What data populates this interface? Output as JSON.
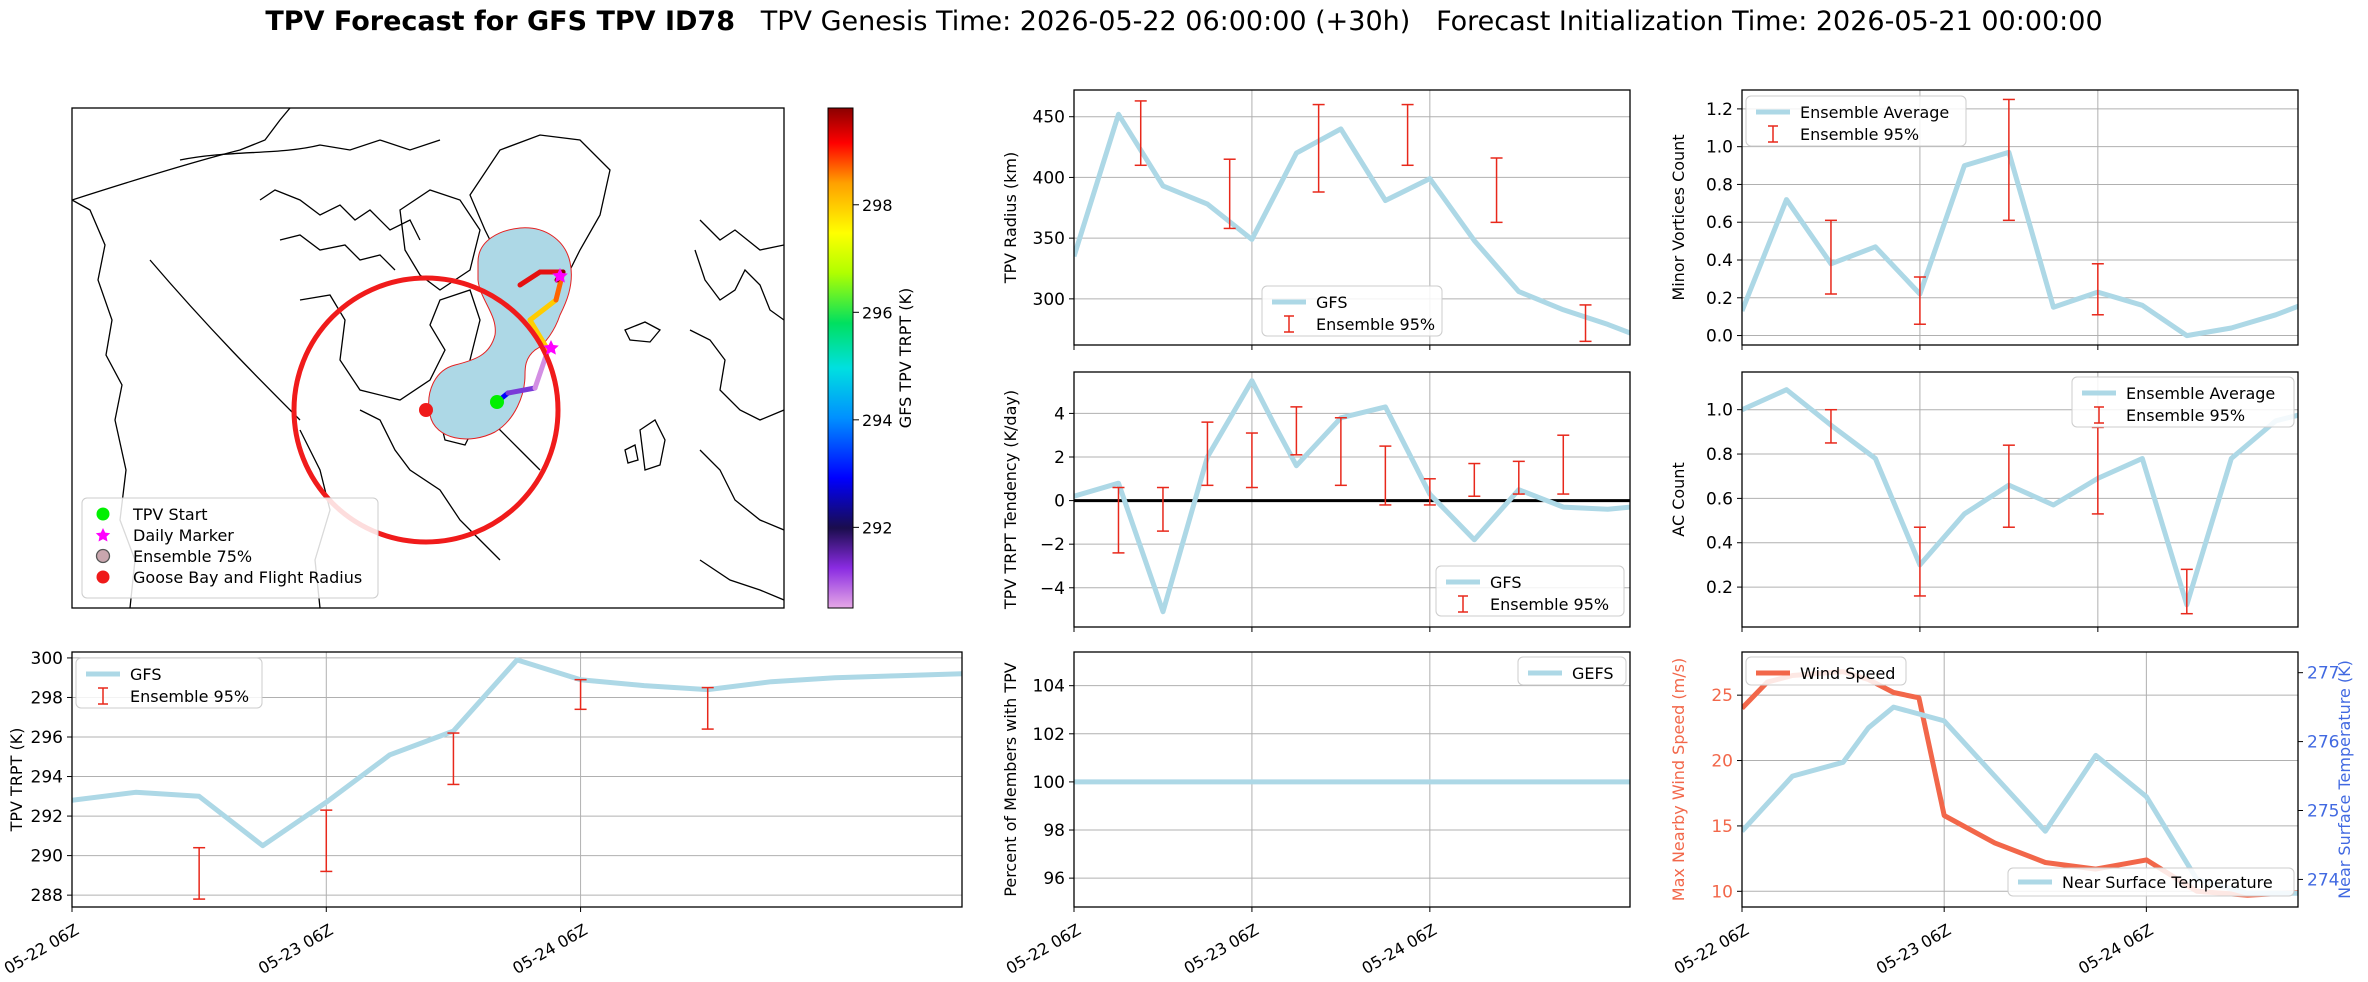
{
  "title": {
    "bold": "TPV Forecast for GFS TPV ID78",
    "genesis": "TPV Genesis Time: 2026-05-22 06:00:00 (+30h)",
    "init": "Forecast Initialization Time: 2026-05-21 00:00:00"
  },
  "colors": {
    "gfs_line": "#add8e6",
    "ensemble_bar": "#e8281b",
    "zero_line": "#000000",
    "wind_line": "#f2674a",
    "wind_axis": "#f2674a",
    "temp_axis": "#4169e1",
    "map_track_fill": "#add8e6",
    "flight_radius": "#f01b1b",
    "tpv_start": "#00f000",
    "daily_marker": "#ff00ff",
    "goose_bay": "#ef1a1a"
  },
  "chart_data": [
    {
      "id": "map",
      "type": "map",
      "legend_placement": "lower-left",
      "legend": [
        {
          "label": "TPV Start",
          "marker": "green-dot-icon"
        },
        {
          "label": "Daily Marker",
          "marker": "magenta-star-icon"
        },
        {
          "label": "Ensemble 75%",
          "marker": "blue-grey-circle-icon"
        },
        {
          "label": "Goose Bay and Flight Radius",
          "marker": "red-dot-icon"
        }
      ],
      "colorbar": {
        "label": "GFS TPV TRPT (K)",
        "range": [
          290.5,
          299.8
        ],
        "ticks": [
          292,
          294,
          296,
          298
        ],
        "tick_labels": [
          "292",
          "294",
          "296",
          "298"
        ]
      }
    },
    {
      "id": "radius",
      "type": "line",
      "ylabel": "TPV Radius (km)",
      "xlim": [
        0,
        75
      ],
      "ylim": [
        262,
        472
      ],
      "yticks": [
        300,
        350,
        400,
        450
      ],
      "ytick_labels": [
        "300",
        "350",
        "400",
        "450"
      ],
      "xticks": [
        0,
        24,
        48
      ],
      "xtick_labels": [
        "05-22 06Z",
        "05-23 06Z",
        "05-24 06Z"
      ],
      "grid": true,
      "legend_placement": "lower-center",
      "series": [
        {
          "name": "GFS",
          "x": [
            0,
            6,
            12,
            18,
            24,
            30,
            36,
            42,
            48,
            54,
            60,
            66,
            72,
            78
          ],
          "values": [
            335,
            452,
            393,
            378,
            349,
            420,
            440,
            381,
            399,
            348,
            306,
            291,
            279,
            265
          ]
        }
      ],
      "errorbars": {
        "name": "Ensemble 95%",
        "x": [
          -3,
          9,
          21,
          33,
          45,
          57,
          69
        ],
        "low": [
          267,
          410,
          358,
          388,
          410,
          363,
          265
        ],
        "high": [
          330,
          463,
          415,
          460,
          460,
          416,
          295
        ]
      }
    },
    {
      "id": "minor",
      "type": "line",
      "ylabel": "Minor Vortices Count",
      "xlim": [
        0,
        75
      ],
      "ylim": [
        -0.05,
        1.3
      ],
      "yticks": [
        0.0,
        0.2,
        0.4,
        0.6,
        0.8,
        1.0,
        1.2
      ],
      "ytick_labels": [
        "0.0",
        "0.2",
        "0.4",
        "0.6",
        "0.8",
        "1.0",
        "1.2"
      ],
      "xticks": [
        0,
        24,
        48
      ],
      "xtick_labels": [
        "05-22 06Z",
        "05-23 06Z",
        "05-24 06Z"
      ],
      "grid": true,
      "legend_placement": "upper-left",
      "series": [
        {
          "name": "Ensemble Average",
          "x": [
            0,
            6,
            12,
            18,
            24,
            30,
            36,
            42,
            48,
            54,
            60,
            66,
            72,
            78
          ],
          "values": [
            0.13,
            0.72,
            0.38,
            0.47,
            0.22,
            0.9,
            0.97,
            0.15,
            0.23,
            0.16,
            0.0,
            0.04,
            0.11,
            0.2
          ]
        }
      ],
      "errorbars": {
        "name": "Ensemble 95%",
        "x": [
          12,
          24,
          36,
          48
        ],
        "low": [
          0.22,
          0.06,
          0.61,
          0.11
        ],
        "high": [
          0.61,
          0.31,
          1.25,
          0.38
        ]
      }
    },
    {
      "id": "tendency",
      "type": "line",
      "ylabel": "TPV TRPT Tendency (K/day)",
      "xlim": [
        0,
        75
      ],
      "ylim": [
        -5.8,
        5.9
      ],
      "yticks": [
        -4,
        -2,
        0,
        2,
        4
      ],
      "ytick_labels": [
        "−4",
        "−2",
        "0",
        "2",
        "4"
      ],
      "xticks": [
        0,
        24,
        48
      ],
      "xtick_labels": [
        "05-22 06Z",
        "05-23 06Z",
        "05-24 06Z"
      ],
      "grid": true,
      "zero_line": true,
      "legend_placement": "lower-right",
      "series": [
        {
          "name": "GFS",
          "x": [
            0,
            6,
            12,
            18,
            24,
            27,
            30,
            36,
            42,
            48,
            54,
            60,
            66,
            72,
            78
          ],
          "values": [
            0.2,
            0.8,
            -5.1,
            2.0,
            5.5,
            3.5,
            1.6,
            3.8,
            4.3,
            0.3,
            -1.8,
            0.5,
            -0.3,
            -0.4,
            -0.2
          ]
        }
      ],
      "errorbars": {
        "name": "Ensemble 95%",
        "x": [
          -3,
          6,
          12,
          18,
          24,
          30,
          36,
          42,
          48,
          54,
          60,
          66
        ],
        "low": [
          -0.5,
          -2.4,
          -1.4,
          0.7,
          0.6,
          2.1,
          0.7,
          -0.2,
          -0.2,
          0.2,
          0.3,
          0.3
        ],
        "high": [
          4.6,
          0.6,
          0.6,
          3.6,
          3.1,
          4.3,
          3.8,
          2.5,
          1.0,
          1.7,
          1.8,
          3.0
        ]
      }
    },
    {
      "id": "ac",
      "type": "line",
      "ylabel": "AC Count",
      "xlim": [
        0,
        75
      ],
      "ylim": [
        0.02,
        1.17
      ],
      "yticks": [
        0.2,
        0.4,
        0.6,
        0.8,
        1.0
      ],
      "ytick_labels": [
        "0.2",
        "0.4",
        "0.6",
        "0.8",
        "1.0"
      ],
      "xticks": [
        0,
        24,
        48
      ],
      "xtick_labels": [
        "05-22 06Z",
        "05-23 06Z",
        "05-24 06Z"
      ],
      "grid": true,
      "legend_placement": "upper-right",
      "series": [
        {
          "name": "Ensemble Average",
          "x": [
            0,
            6,
            12,
            18,
            24,
            30,
            36,
            42,
            48,
            54,
            60,
            66,
            72,
            78
          ],
          "values": [
            1.0,
            1.09,
            0.93,
            0.78,
            0.3,
            0.53,
            0.66,
            0.57,
            0.69,
            0.78,
            0.12,
            0.78,
            0.95,
            1.0
          ]
        }
      ],
      "errorbars": {
        "name": "Ensemble 95%",
        "x": [
          12,
          24,
          36,
          48,
          60
        ],
        "low": [
          0.85,
          0.16,
          0.47,
          0.53,
          0.08
        ],
        "high": [
          1.0,
          0.47,
          0.84,
          0.92,
          0.28
        ]
      }
    },
    {
      "id": "trpt",
      "type": "line",
      "ylabel": "TPV TRPT (K)",
      "xlim": [
        0,
        84
      ],
      "ylim": [
        287.4,
        300.3
      ],
      "yticks": [
        288,
        290,
        292,
        294,
        296,
        298,
        300
      ],
      "ytick_labels": [
        "288",
        "290",
        "292",
        "294",
        "296",
        "298",
        "300"
      ],
      "xticks": [
        0,
        24,
        48
      ],
      "xtick_labels": [
        "05-22 06Z",
        "05-23 06Z",
        "05-24 06Z"
      ],
      "grid": true,
      "legend_placement": "upper-left",
      "series": [
        {
          "name": "GFS",
          "x": [
            0,
            6,
            12,
            18,
            24,
            30,
            36,
            42,
            48,
            54,
            60,
            66,
            72,
            78,
            84
          ],
          "values": [
            292.8,
            293.2,
            293.0,
            290.5,
            292.7,
            295.1,
            296.3,
            299.9,
            298.9,
            298.6,
            298.4,
            298.8,
            299.0,
            299.1,
            299.2
          ]
        }
      ],
      "errorbars": {
        "name": "Ensemble 95%",
        "x": [
          -3,
          12,
          24,
          36,
          48,
          60
        ],
        "low": [
          291.0,
          287.8,
          289.2,
          293.6,
          297.4,
          296.4
        ],
        "high": [
          297.5,
          290.4,
          292.3,
          296.2,
          298.9,
          298.5
        ]
      }
    },
    {
      "id": "percent",
      "type": "line",
      "ylabel": "Percent of Members with TPV",
      "xlim": [
        0,
        75
      ],
      "ylim": [
        94.8,
        105.4
      ],
      "yticks": [
        96,
        98,
        100,
        102,
        104
      ],
      "ytick_labels": [
        "96",
        "98",
        "100",
        "102",
        "104"
      ],
      "xticks": [
        0,
        24,
        48
      ],
      "xtick_labels": [
        "05-22 06Z",
        "05-23 06Z",
        "05-24 06Z"
      ],
      "grid": true,
      "legend_placement": "upper-right",
      "series": [
        {
          "name": "GEFS",
          "x": [
            0,
            75
          ],
          "values": [
            100,
            100
          ]
        }
      ]
    },
    {
      "id": "wind",
      "type": "line",
      "ylabel": "Max Nearby Wind Speed (m/s)",
      "y2label": "Near Surface Temperature (K)",
      "xlim": [
        0,
        66
      ],
      "ylim": [
        8.8,
        28.3
      ],
      "yticks": [
        10,
        15,
        20,
        25
      ],
      "ytick_labels": [
        "10",
        "15",
        "20",
        "25"
      ],
      "y2lim": [
        273.6,
        277.3
      ],
      "y2ticks": [
        274,
        275,
        276,
        277
      ],
      "y2tick_labels": [
        "274",
        "275",
        "276",
        "277"
      ],
      "xticks": [
        0,
        24,
        48
      ],
      "xtick_labels": [
        "05-22 06Z",
        "05-23 06Z",
        "05-24 06Z"
      ],
      "grid": true,
      "legend_placement": "upper-left",
      "legend2_placement": "lower-right",
      "series": [
        {
          "name": "Wind Speed",
          "axis": "left",
          "x": [
            0,
            3,
            6,
            12,
            15,
            18,
            21,
            24,
            30,
            36,
            42,
            48,
            54,
            60,
            66
          ],
          "values": [
            24.0,
            26.0,
            26.5,
            26.8,
            26.2,
            25.2,
            24.8,
            15.8,
            13.7,
            12.2,
            11.7,
            12.4,
            10.0,
            9.7,
            9.9
          ]
        },
        {
          "name": "Near Surface Temperature",
          "axis": "right",
          "x": [
            0,
            6,
            12,
            15,
            18,
            24,
            30,
            36,
            42,
            48,
            54,
            60,
            66
          ],
          "values": [
            274.7,
            275.5,
            275.7,
            276.2,
            276.5,
            276.3,
            275.5,
            274.7,
            275.8,
            275.2,
            274.0,
            273.8,
            273.8
          ]
        }
      ]
    }
  ]
}
